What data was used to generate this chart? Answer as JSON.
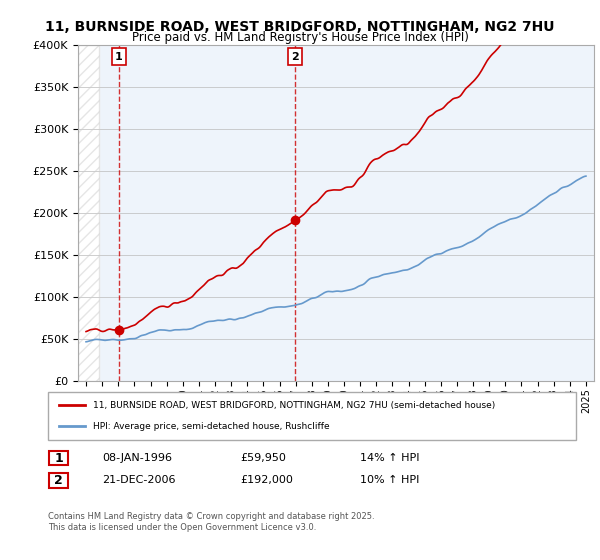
{
  "title": "11, BURNSIDE ROAD, WEST BRIDGFORD, NOTTINGHAM, NG2 7HU",
  "subtitle": "Price paid vs. HM Land Registry's House Price Index (HPI)",
  "legend_line1": "11, BURNSIDE ROAD, WEST BRIDGFORD, NOTTINGHAM, NG2 7HU (semi-detached house)",
  "legend_line2": "HPI: Average price, semi-detached house, Rushcliffe",
  "footnote": "Contains HM Land Registry data © Crown copyright and database right 2025.\nThis data is licensed under the Open Government Licence v3.0.",
  "transaction1_label": "1",
  "transaction1_date": "08-JAN-1996",
  "transaction1_price": "£59,950",
  "transaction1_hpi": "14% ↑ HPI",
  "transaction2_label": "2",
  "transaction2_date": "21-DEC-2006",
  "transaction2_price": "£192,000",
  "transaction2_hpi": "10% ↑ HPI",
  "sale1_year": 1996.03,
  "sale1_price": 59950,
  "sale2_year": 2006.97,
  "sale2_price": 192000,
  "price_line_color": "#cc0000",
  "hpi_line_color": "#6699cc",
  "background_color": "#ffffff",
  "plot_bg_color": "#eef4fb",
  "hatch_color": "#cccccc",
  "dashed_line_color": "#cc0000",
  "ylim": [
    0,
    400000
  ],
  "xlim_start": 1993.5,
  "xlim_end": 2025.5
}
